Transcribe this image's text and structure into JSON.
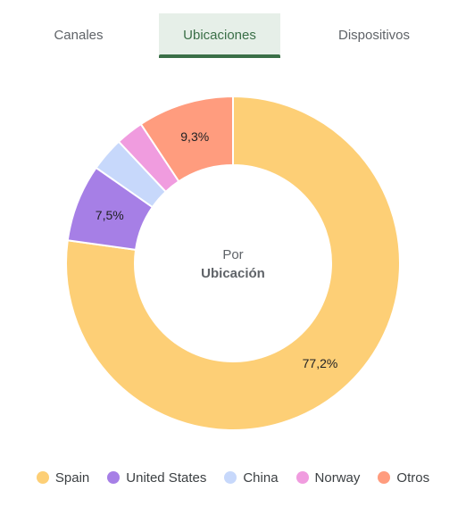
{
  "tabs": [
    {
      "label": "Canales",
      "active": false
    },
    {
      "label": "Ubicaciones",
      "active": true
    },
    {
      "label": "Dispositivos",
      "active": false
    }
  ],
  "center": {
    "line1": "Por",
    "line2": "Ubicación"
  },
  "chart_data": {
    "type": "pie",
    "donut": true,
    "categories": [
      "Spain",
      "United States",
      "China",
      "Norway",
      "Otros"
    ],
    "values": [
      77.2,
      7.5,
      3.3,
      2.7,
      9.3
    ],
    "data_labels": [
      "77,2%",
      "7,5%",
      "",
      "",
      "9,3%"
    ],
    "colors": [
      "#fdcf76",
      "#a67fe6",
      "#c7d8fb",
      "#f09cdf",
      "#ff9c7e"
    ],
    "legend_position": "bottom"
  }
}
